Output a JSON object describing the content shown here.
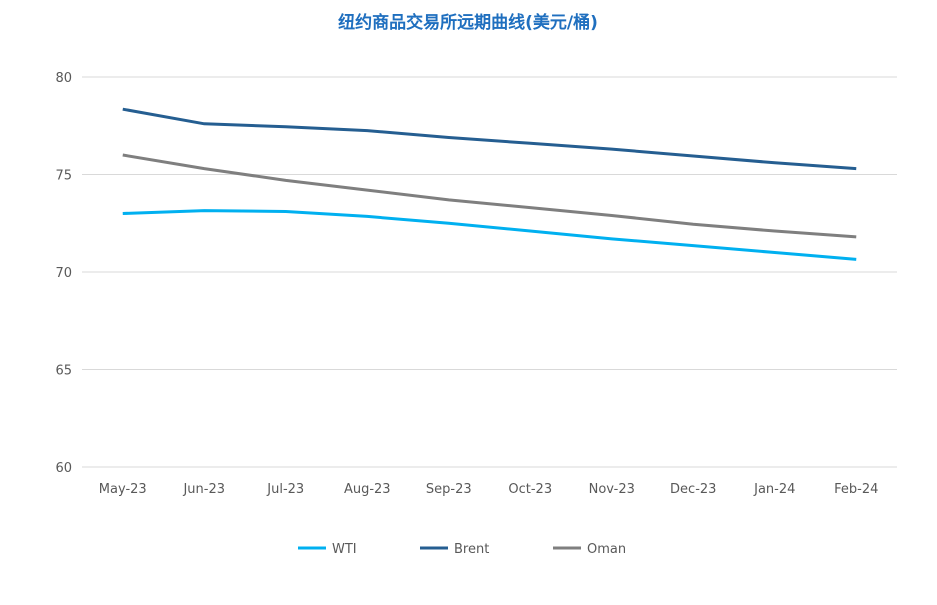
{
  "chart_data": {
    "type": "line",
    "title": "纽约商品交易所远期曲线(美元/桶)",
    "xlabel": "",
    "ylabel": "",
    "categories": [
      "May-23",
      "Jun-23",
      "Jul-23",
      "Aug-23",
      "Sep-23",
      "Oct-23",
      "Nov-23",
      "Dec-23",
      "Jan-24",
      "Feb-24"
    ],
    "ylim": [
      60,
      80
    ],
    "yticks": [
      "60",
      "65",
      "70",
      "75",
      "80"
    ],
    "grid": true,
    "legend": "bottom",
    "series": [
      {
        "name": "WTI",
        "color": "#00b0f0",
        "values": [
          73.0,
          73.15,
          73.1,
          72.85,
          72.5,
          72.1,
          71.7,
          71.35,
          71.0,
          70.65
        ]
      },
      {
        "name": "Brent",
        "color": "#255e91",
        "values": [
          78.35,
          77.6,
          77.45,
          77.25,
          76.9,
          76.6,
          76.3,
          75.95,
          75.6,
          75.3
        ]
      },
      {
        "name": "Oman",
        "color": "#7f7f7f",
        "values": [
          76.0,
          75.3,
          74.7,
          74.2,
          73.7,
          73.3,
          72.9,
          72.45,
          72.1,
          71.8
        ]
      }
    ]
  }
}
